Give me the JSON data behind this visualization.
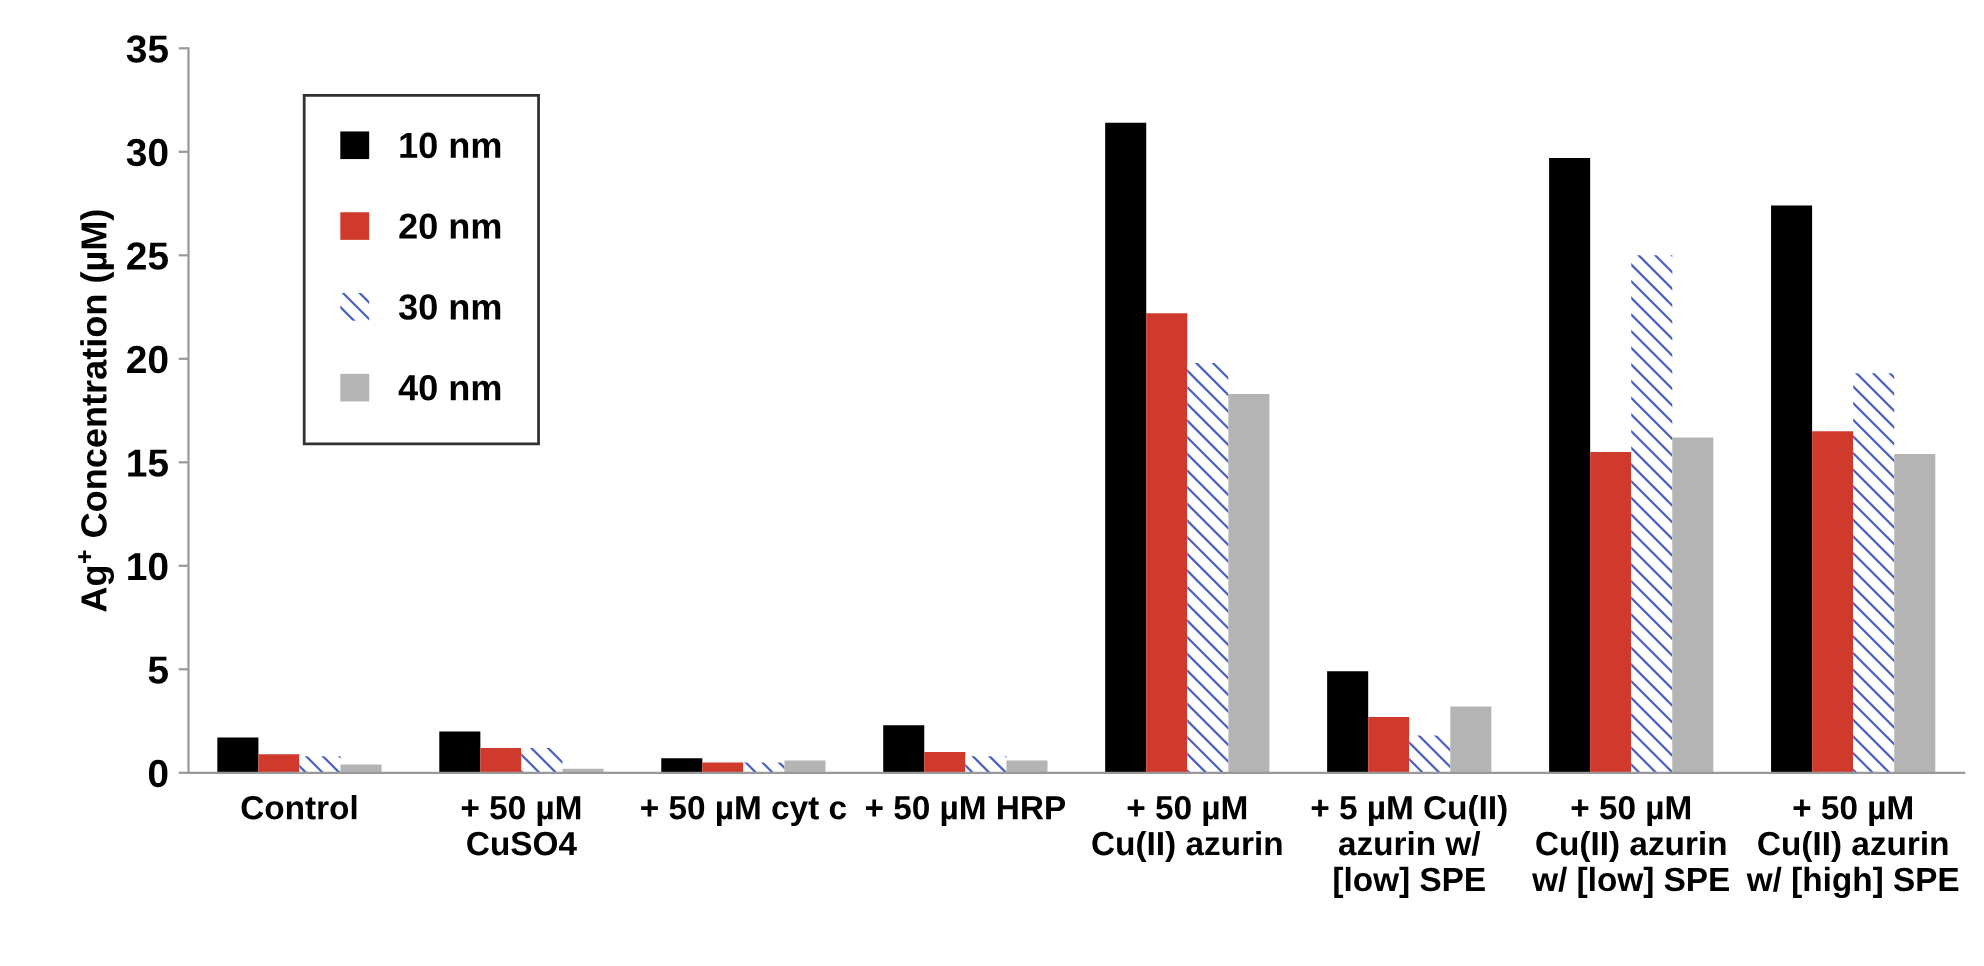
{
  "chart_data": {
    "type": "bar",
    "ylabel": "Ag$^{+}$ Concentration (µM)",
    "categories": [
      "Control",
      "+ 50 µM\nCuSO4",
      "+ 50 µM cyt c",
      "+ 50 µM HRP",
      "+ 50 µM\nCu(II) azurin",
      "+ 5 µM Cu(II)\nazurin w/\n[low] SPE",
      "+ 50 µM\nCu(II) azurin\nw/ [low] SPE",
      "+ 50 µM\nCu(II) azurin\nw/ [high] SPE"
    ],
    "series": [
      {
        "name": "10 nm",
        "color": "#000000",
        "values": [
          1.7,
          2.0,
          0.7,
          2.3,
          31.4,
          4.9,
          29.7,
          27.4
        ]
      },
      {
        "name": "20 nm",
        "color": "#d03a2c",
        "values": [
          0.9,
          1.2,
          0.5,
          1.0,
          22.2,
          2.7,
          15.5,
          16.5
        ]
      },
      {
        "name": "30 nm",
        "color": "#4a5fc1",
        "values": [
          0.8,
          1.2,
          0.5,
          0.8,
          19.8,
          1.8,
          25.0,
          19.3
        ]
      },
      {
        "name": "40 nm",
        "color": "#b4b4b4",
        "values": [
          0.4,
          0.2,
          0.6,
          0.6,
          18.3,
          3.2,
          16.2,
          15.4
        ]
      }
    ],
    "ylim": [
      0,
      35
    ],
    "yticks": [
      0,
      5,
      10,
      15,
      20,
      25,
      30,
      35
    ],
    "grid": false,
    "legend": "top left"
  }
}
